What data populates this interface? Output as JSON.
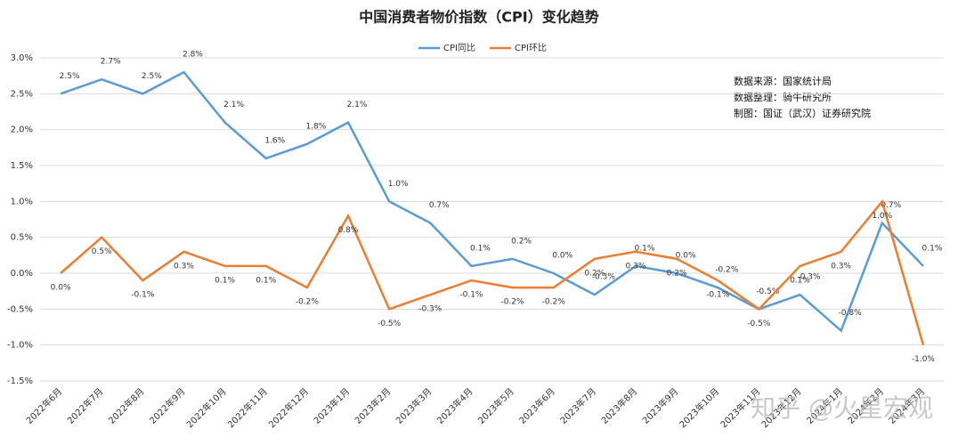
{
  "chart_data": {
    "type": "line",
    "title": "中国消费者物价指数（CPI）变化趋势",
    "categories": [
      "2022年6月",
      "2022年7月",
      "2022年8月",
      "2022年9月",
      "2022年10月",
      "2022年11月",
      "2022年12月",
      "2023年1月",
      "2023年2月",
      "2023年3月",
      "2023年4月",
      "2023年5月",
      "2023年6月",
      "2023年7月",
      "2023年8月",
      "2023年9月",
      "2023年10月",
      "2023年11月",
      "2023年12月",
      "2024年1月",
      "2024年2月",
      "2024年3月"
    ],
    "series": [
      {
        "name": "CPI同比",
        "color": "#5b9bd5",
        "values": [
          2.5,
          2.7,
          2.5,
          2.8,
          2.1,
          1.6,
          1.8,
          2.1,
          1.0,
          0.7,
          0.1,
          0.2,
          0.0,
          -0.3,
          0.1,
          0.0,
          -0.2,
          -0.5,
          -0.3,
          -0.8,
          0.7,
          0.1
        ],
        "value_labels": [
          "2.5%",
          "2.7%",
          "2.5%",
          "2.8%",
          "2.1%",
          "1.6%",
          "1.8%",
          "2.1%",
          "1.0%",
          "0.7%",
          "0.1%",
          "0.2%",
          "0.0%",
          "-0.3%",
          "0.1%",
          "0.0%",
          "-0.2%",
          "-0.5%",
          "-0.3%",
          "-0.8%",
          "0.7%",
          "0.1%"
        ]
      },
      {
        "name": "CPI环比",
        "color": "#ed7d31",
        "values": [
          0.0,
          0.5,
          -0.1,
          0.3,
          0.1,
          0.1,
          -0.2,
          0.8,
          -0.5,
          -0.3,
          -0.1,
          -0.2,
          -0.2,
          0.2,
          0.3,
          0.2,
          -0.1,
          -0.5,
          0.1,
          0.3,
          1.0,
          -1.0
        ],
        "value_labels": [
          "0.0%",
          "0.5%",
          "-0.1%",
          "0.3%",
          "0.1%",
          "0.1%",
          "-0.2%",
          "0.8%",
          "-0.5%",
          "-0.3%",
          "-0.1%",
          "-0.2%",
          "-0.2%",
          "0.2%",
          "0.3%",
          "0.2%",
          "-0.1%",
          "-0.5%",
          "0.1%",
          "0.3%",
          "1.0%",
          "-1.0%"
        ]
      }
    ],
    "ylim": [
      -1.5,
      3.0
    ],
    "yticks": [
      {
        "value": -1.5,
        "label": "-1.5%"
      },
      {
        "value": -1.0,
        "label": "-1.0%"
      },
      {
        "value": -0.5,
        "label": "-0.5%"
      },
      {
        "value": 0.0,
        "label": "0.0%"
      },
      {
        "value": 0.5,
        "label": "0.5%"
      },
      {
        "value": 1.0,
        "label": "1.0%"
      },
      {
        "value": 1.5,
        "label": "1.5%"
      },
      {
        "value": 2.0,
        "label": "2.0%"
      },
      {
        "value": 2.5,
        "label": "2.5%"
      },
      {
        "value": 3.0,
        "label": "3.0%"
      }
    ],
    "grid": true,
    "legend": "top",
    "annotations": [
      "数据来源：国家统计局",
      "数据整理：骑牛研究所",
      "制图：国证（武汉）证券研究院"
    ],
    "watermark": "知乎 @火星宏观"
  }
}
